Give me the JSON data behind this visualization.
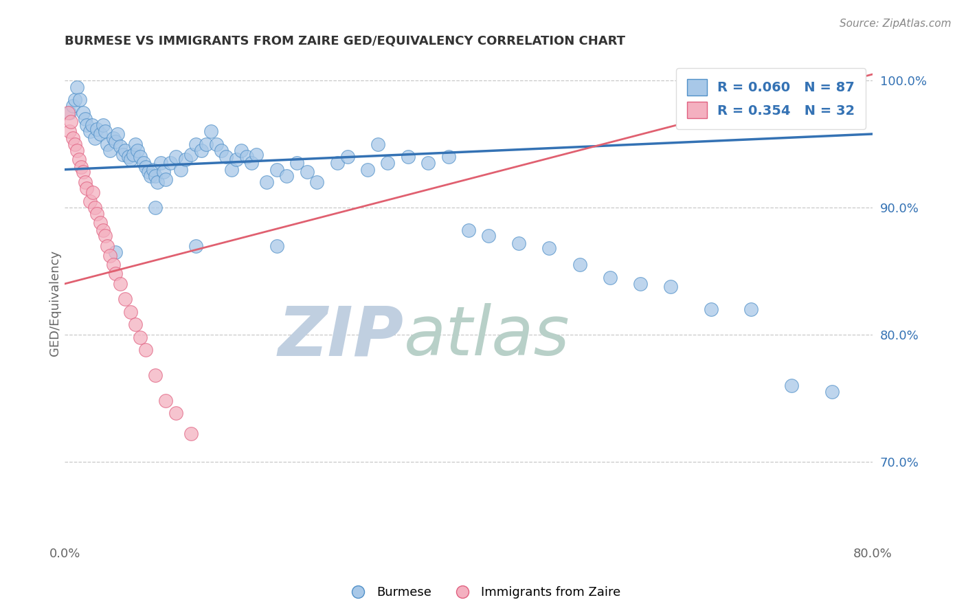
{
  "title": "BURMESE VS IMMIGRANTS FROM ZAIRE GED/EQUIVALENCY CORRELATION CHART",
  "source_text": "Source: ZipAtlas.com",
  "ylabel": "GED/Equivalency",
  "xlim": [
    0.0,
    0.8
  ],
  "ylim": [
    0.635,
    1.015
  ],
  "xticks": [
    0.0,
    0.1,
    0.2,
    0.3,
    0.4,
    0.5,
    0.6,
    0.7,
    0.8
  ],
  "yticks": [
    0.7,
    0.8,
    0.9,
    1.0
  ],
  "yticklabels": [
    "70.0%",
    "80.0%",
    "90.0%",
    "100.0%"
  ],
  "blue_color": "#a8c8e8",
  "pink_color": "#f4b0c0",
  "blue_edge_color": "#5090c8",
  "pink_edge_color": "#e06080",
  "blue_line_color": "#3472b4",
  "pink_line_color": "#e06070",
  "legend_blue_label": "R = 0.060   N = 87",
  "legend_pink_label": "R = 0.354   N = 32",
  "watermark_zip": "ZIP",
  "watermark_atlas": "atlas",
  "watermark_color_zip": "#c0cfe0",
  "watermark_color_atlas": "#b8d0c8",
  "burmese_label": "Burmese",
  "zaire_label": "Immigrants from Zaire",
  "blue_scatter_x": [
    0.005,
    0.008,
    0.01,
    0.012,
    0.015,
    0.018,
    0.02,
    0.022,
    0.025,
    0.027,
    0.03,
    0.032,
    0.035,
    0.038,
    0.04,
    0.042,
    0.045,
    0.048,
    0.05,
    0.052,
    0.055,
    0.058,
    0.06,
    0.063,
    0.065,
    0.068,
    0.07,
    0.072,
    0.075,
    0.078,
    0.08,
    0.083,
    0.085,
    0.088,
    0.09,
    0.092,
    0.095,
    0.098,
    0.1,
    0.105,
    0.11,
    0.115,
    0.12,
    0.125,
    0.13,
    0.135,
    0.14,
    0.145,
    0.15,
    0.155,
    0.16,
    0.165,
    0.17,
    0.175,
    0.18,
    0.185,
    0.19,
    0.2,
    0.21,
    0.22,
    0.23,
    0.24,
    0.25,
    0.27,
    0.28,
    0.3,
    0.32,
    0.34,
    0.36,
    0.38,
    0.4,
    0.42,
    0.45,
    0.48,
    0.51,
    0.54,
    0.57,
    0.6,
    0.64,
    0.68,
    0.72,
    0.76,
    0.05,
    0.09,
    0.13,
    0.21,
    0.31
  ],
  "blue_scatter_y": [
    0.975,
    0.98,
    0.985,
    0.995,
    0.985,
    0.975,
    0.97,
    0.965,
    0.96,
    0.965,
    0.955,
    0.962,
    0.958,
    0.965,
    0.96,
    0.95,
    0.945,
    0.955,
    0.952,
    0.958,
    0.948,
    0.942,
    0.945,
    0.94,
    0.938,
    0.942,
    0.95,
    0.945,
    0.94,
    0.935,
    0.932,
    0.928,
    0.925,
    0.93,
    0.925,
    0.92,
    0.935,
    0.928,
    0.922,
    0.935,
    0.94,
    0.93,
    0.938,
    0.942,
    0.95,
    0.945,
    0.95,
    0.96,
    0.95,
    0.945,
    0.94,
    0.93,
    0.938,
    0.945,
    0.94,
    0.935,
    0.942,
    0.92,
    0.93,
    0.925,
    0.935,
    0.928,
    0.92,
    0.935,
    0.94,
    0.93,
    0.935,
    0.94,
    0.935,
    0.94,
    0.882,
    0.878,
    0.872,
    0.868,
    0.855,
    0.845,
    0.84,
    0.838,
    0.82,
    0.82,
    0.76,
    0.755,
    0.865,
    0.9,
    0.87,
    0.87,
    0.95
  ],
  "pink_scatter_x": [
    0.003,
    0.005,
    0.006,
    0.008,
    0.01,
    0.012,
    0.014,
    0.016,
    0.018,
    0.02,
    0.022,
    0.025,
    0.028,
    0.03,
    0.032,
    0.035,
    0.038,
    0.04,
    0.042,
    0.045,
    0.048,
    0.05,
    0.055,
    0.06,
    0.065,
    0.07,
    0.075,
    0.08,
    0.09,
    0.1,
    0.11,
    0.125
  ],
  "pink_scatter_y": [
    0.975,
    0.96,
    0.968,
    0.955,
    0.95,
    0.945,
    0.938,
    0.932,
    0.928,
    0.92,
    0.915,
    0.905,
    0.912,
    0.9,
    0.895,
    0.888,
    0.882,
    0.878,
    0.87,
    0.862,
    0.855,
    0.848,
    0.84,
    0.828,
    0.818,
    0.808,
    0.798,
    0.788,
    0.768,
    0.748,
    0.738,
    0.722
  ],
  "blue_trend_x": [
    0.0,
    0.8
  ],
  "blue_trend_y": [
    0.93,
    0.958
  ],
  "pink_trend_x": [
    0.0,
    0.8
  ],
  "pink_trend_y": [
    0.84,
    1.005
  ]
}
